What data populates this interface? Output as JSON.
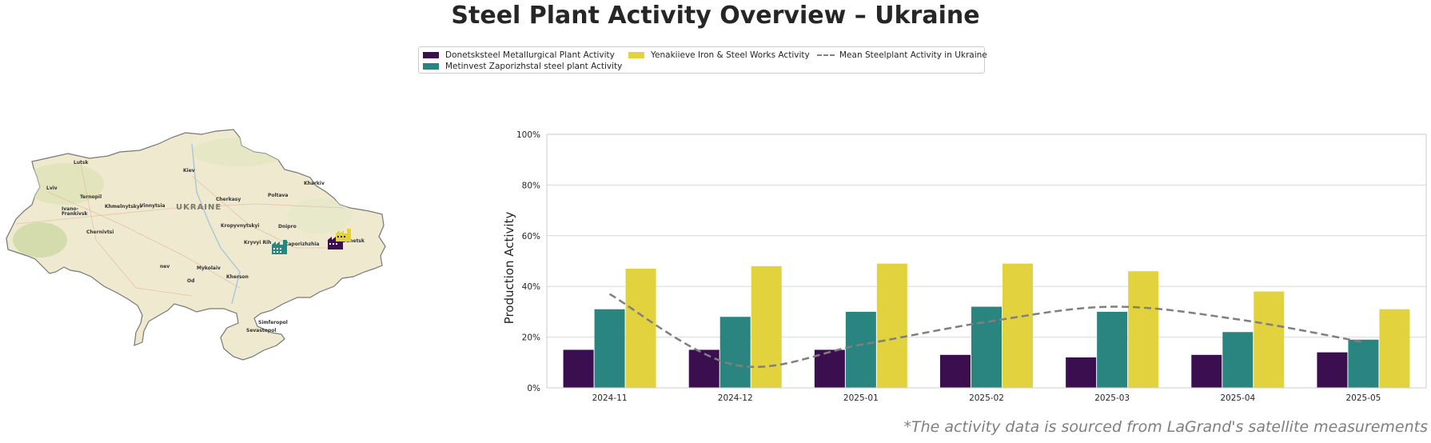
{
  "title": "Steel Plant Activity Overview – Ukraine",
  "footnote": "*The activity data is sourced from LaGrand's satellite measurements",
  "legend": {
    "items": [
      {
        "label": "Donetsksteel Metallurgical Plant Activity",
        "color": "#3b0f4f"
      },
      {
        "label": "Metinvest Zaporizhstal steel plant Activity",
        "color": "#2a8480"
      },
      {
        "label": "Yenakiieve Iron & Steel Works Activity",
        "color": "#e2d23e"
      },
      {
        "label": "Mean Steelplant Activity in Ukraine",
        "color": "#7f7f7f"
      }
    ]
  },
  "map": {
    "country_label": "UKRAINE",
    "cities": [
      {
        "name": "Lutsk"
      },
      {
        "name": "Kiev"
      },
      {
        "name": "Kharkiv"
      },
      {
        "name": "Lviv"
      },
      {
        "name": "Ternopil"
      },
      {
        "name": "Khmelnytskyi"
      },
      {
        "name": "Vinnytsia"
      },
      {
        "name": "Cherkasy"
      },
      {
        "name": "Poltava"
      },
      {
        "name": "Ivano-"
      },
      {
        "name": "Frankivsk"
      },
      {
        "name": "Chernivtsi"
      },
      {
        "name": "Kropyvnytskyi"
      },
      {
        "name": "Dnipro"
      },
      {
        "name": "Kryvyi Rih"
      },
      {
        "name": "Zaporizhzhia"
      },
      {
        "name": "Donetsk"
      },
      {
        "name": "Mykolaiv"
      },
      {
        "name": "Kherson"
      },
      {
        "name": "nev"
      },
      {
        "name": "Od"
      },
      {
        "name": "Simferopol"
      },
      {
        "name": "Sevastopol"
      }
    ]
  },
  "chart_data": {
    "type": "bar",
    "categories": [
      "2024-11",
      "2024-12",
      "2025-01",
      "2025-02",
      "2025-03",
      "2025-04",
      "2025-05"
    ],
    "series": [
      {
        "name": "Donetsksteel Metallurgical Plant Activity",
        "color": "#3b0f4f",
        "values": [
          15,
          15,
          15,
          13,
          12,
          13,
          14
        ]
      },
      {
        "name": "Metinvest Zaporizhstal steel plant Activity",
        "color": "#2a8480",
        "values": [
          31,
          28,
          30,
          32,
          30,
          22,
          19
        ]
      },
      {
        "name": "Yenakiieve Iron & Steel Works Activity",
        "color": "#e2d23e",
        "values": [
          47,
          48,
          49,
          49,
          46,
          38,
          31
        ]
      }
    ],
    "line": {
      "name": "Mean Steelplant Activity in Ukraine",
      "style": "dashed",
      "color": "#7f7f7f",
      "values": [
        37,
        9,
        17,
        26,
        32,
        27,
        18
      ]
    },
    "ylabel": "Production Activity",
    "ylim": [
      0,
      100
    ],
    "yticks": [
      "0%",
      "20%",
      "40%",
      "60%",
      "80%",
      "100%"
    ],
    "grid": true
  }
}
